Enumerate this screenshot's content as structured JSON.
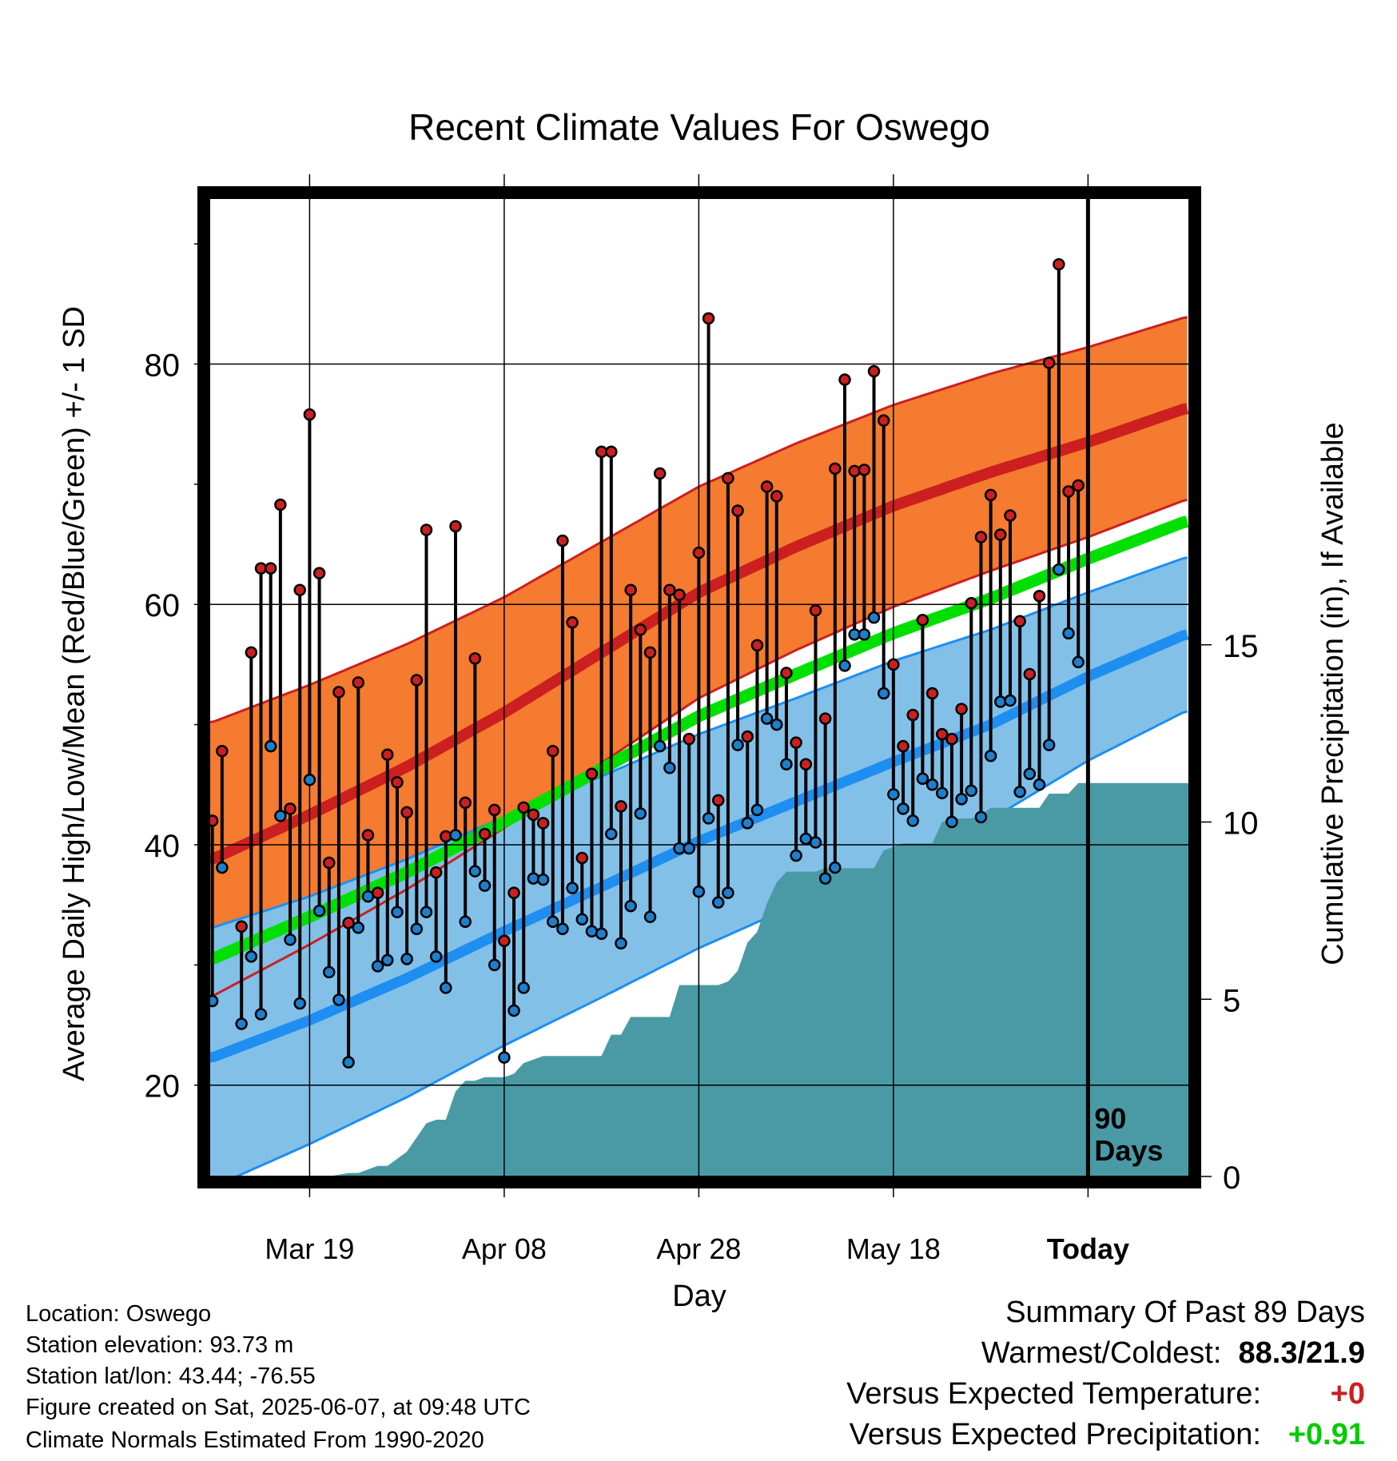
{
  "chart_data": {
    "type": "line",
    "title": "Recent Climate Values For Oswego",
    "xlabel": "Day",
    "ylabel": "Average Daily High/Low/Mean (Red/Blue/Green) +/- 1 SD",
    "y2label": "Cumulative Precipitation (in), If Available",
    "x_tick_labels": [
      "Mar 19",
      "Apr 08",
      "Apr 28",
      "May 18",
      "Today"
    ],
    "x_tick_days": [
      10,
      30,
      50,
      70,
      90
    ],
    "y_ticks": [
      20,
      40,
      60,
      80
    ],
    "y2_ticks": [
      0,
      5,
      10,
      15
    ],
    "xlim": [
      -0.3,
      100.4
    ],
    "ylim": [
      12.4,
      93.8
    ],
    "y2lim": [
      0,
      27.6
    ],
    "today_marker": {
      "day": 90,
      "label_line1": "90",
      "label_line2": "Days"
    },
    "normals": {
      "days": [
        0,
        10,
        20,
        30,
        40,
        50,
        60,
        70,
        80,
        90,
        100
      ],
      "high_mean": [
        38.8,
        42.5,
        46.5,
        51.0,
        56.0,
        61.0,
        64.8,
        68.2,
        71.0,
        73.5,
        76.3
      ],
      "high_sd": [
        11.4,
        10.8,
        10.2,
        9.6,
        9.2,
        8.8,
        8.6,
        8.4,
        8.2,
        7.9,
        7.6
      ],
      "low_mean": [
        22.3,
        25.4,
        28.9,
        32.8,
        36.5,
        40.3,
        43.6,
        46.9,
        50.0,
        54.0,
        57.5
      ],
      "low_sd": [
        10.8,
        10.3,
        9.9,
        9.5,
        9.2,
        8.9,
        8.6,
        8.4,
        7.9,
        7.0,
        6.4
      ],
      "avg_mean": [
        30.5,
        34.0,
        37.7,
        41.9,
        46.3,
        50.7,
        54.2,
        57.6,
        60.5,
        63.8,
        66.9
      ]
    },
    "series": [
      {
        "name": "High",
        "color": "#cc1f1f",
        "x": [
          0,
          1,
          3,
          4,
          5,
          6,
          7,
          8,
          9,
          10,
          11,
          12,
          13,
          14,
          15,
          16,
          17,
          18,
          19,
          20,
          21,
          22,
          23,
          24,
          25,
          26,
          27,
          28,
          29,
          30,
          31,
          32,
          33,
          34,
          35,
          36,
          37,
          38,
          39,
          40,
          41,
          42,
          43,
          44,
          45,
          46,
          47,
          48,
          49,
          50,
          51,
          52,
          53,
          54,
          55,
          56,
          57,
          58,
          59,
          60,
          61,
          62,
          63,
          64,
          65,
          66,
          67,
          68,
          69,
          70,
          71,
          72,
          73,
          74,
          75,
          76,
          77,
          78,
          79,
          80,
          81,
          82,
          83,
          84,
          85,
          86,
          87,
          88,
          89
        ],
        "values": [
          42.0,
          47.8,
          33.2,
          56.0,
          63.0,
          63.0,
          68.3,
          43.0,
          61.2,
          75.8,
          62.6,
          38.5,
          52.7,
          33.5,
          53.5,
          40.8,
          36.0,
          47.5,
          45.2,
          42.7,
          53.7,
          66.2,
          37.7,
          40.7,
          66.5,
          43.5,
          55.5,
          40.9,
          42.9,
          32.0,
          36.0,
          43.1,
          42.5,
          41.8,
          47.8,
          65.3,
          58.5,
          38.9,
          45.9,
          72.7,
          72.7,
          43.2,
          61.2,
          57.9,
          56.0,
          70.9,
          61.2,
          60.8,
          48.8,
          64.3,
          83.8,
          43.7,
          70.5,
          67.8,
          49.0,
          56.6,
          69.8,
          69.0,
          54.3,
          48.5,
          46.7,
          59.5,
          50.5,
          71.3,
          78.7,
          71.1,
          71.2,
          79.4,
          75.3,
          55.0,
          48.2,
          50.8,
          58.7,
          52.6,
          49.2,
          48.8,
          51.3,
          60.1,
          65.6,
          69.1,
          65.8,
          67.4,
          58.6,
          54.2,
          60.7,
          80.1,
          88.3,
          69.4,
          69.9
        ]
      },
      {
        "name": "Low",
        "color": "#1f7fcc",
        "x": [
          0,
          1,
          3,
          4,
          5,
          6,
          7,
          8,
          9,
          10,
          11,
          12,
          13,
          14,
          15,
          16,
          17,
          18,
          19,
          20,
          21,
          22,
          23,
          24,
          25,
          26,
          27,
          28,
          29,
          30,
          31,
          32,
          33,
          34,
          35,
          36,
          37,
          38,
          39,
          40,
          41,
          42,
          43,
          44,
          45,
          46,
          47,
          48,
          49,
          50,
          51,
          52,
          53,
          54,
          55,
          56,
          57,
          58,
          59,
          60,
          61,
          62,
          63,
          64,
          65,
          66,
          67,
          68,
          69,
          70,
          71,
          72,
          73,
          74,
          75,
          76,
          77,
          78,
          79,
          80,
          81,
          82,
          83,
          84,
          85,
          86,
          87,
          88,
          89
        ],
        "values": [
          27.0,
          38.1,
          25.1,
          30.7,
          25.9,
          48.2,
          42.4,
          32.1,
          26.8,
          45.4,
          34.5,
          29.4,
          27.1,
          21.9,
          33.1,
          35.7,
          29.9,
          30.4,
          34.4,
          30.5,
          33.0,
          34.4,
          30.7,
          28.1,
          40.8,
          33.6,
          37.8,
          36.6,
          30.0,
          22.3,
          26.2,
          28.1,
          37.2,
          37.1,
          33.6,
          33.0,
          36.4,
          33.8,
          32.8,
          32.6,
          40.9,
          31.8,
          34.9,
          42.6,
          34.0,
          48.2,
          46.4,
          39.7,
          39.7,
          36.1,
          42.2,
          35.2,
          36.0,
          48.3,
          41.8,
          42.9,
          50.5,
          50.0,
          46.7,
          39.1,
          40.5,
          40.2,
          37.2,
          38.1,
          54.9,
          57.5,
          57.5,
          58.9,
          52.6,
          44.2,
          43.0,
          42.0,
          45.5,
          45.0,
          44.3,
          41.9,
          43.8,
          44.5,
          42.3,
          47.4,
          51.9,
          52.0,
          44.4,
          45.9,
          45.0,
          48.3,
          62.9,
          57.6,
          55.2
        ]
      }
    ],
    "precip": {
      "days": [
        0,
        12,
        14,
        15,
        17,
        18,
        20,
        22,
        23,
        24,
        25,
        26,
        27,
        28,
        29,
        30,
        31,
        32,
        33,
        34,
        35,
        36,
        37,
        38,
        39,
        40,
        41,
        42,
        43,
        44,
        45,
        46,
        47,
        48,
        49,
        50,
        51,
        52,
        53,
        54,
        55,
        56,
        57,
        58,
        59,
        60,
        61,
        62,
        63,
        64,
        65,
        66,
        67,
        68,
        69,
        70,
        71,
        72,
        73,
        74,
        75,
        76,
        77,
        78,
        79,
        80,
        81,
        82,
        83,
        84,
        85,
        86,
        87,
        88,
        89,
        100.4
      ],
      "values": [
        0,
        0,
        0.1,
        0.1,
        0.3,
        0.3,
        0.7,
        1.5,
        1.6,
        1.6,
        2.4,
        2.7,
        2.7,
        2.8,
        2.8,
        2.8,
        2.9,
        3.2,
        3.3,
        3.4,
        3.4,
        3.4,
        3.4,
        3.4,
        3.4,
        3.4,
        4.0,
        4.0,
        4.5,
        4.5,
        4.5,
        4.5,
        4.5,
        5.4,
        5.4,
        5.4,
        5.4,
        5.4,
        5.5,
        5.8,
        6.6,
        6.9,
        7.7,
        8.3,
        8.6,
        8.6,
        8.6,
        8.6,
        8.7,
        8.7,
        8.7,
        8.7,
        8.7,
        8.7,
        9.2,
        9.3,
        9.4,
        9.4,
        9.4,
        9.4,
        10.0,
        10.1,
        10.1,
        10.1,
        10.2,
        10.4,
        10.4,
        10.4,
        10.4,
        10.4,
        10.4,
        10.8,
        10.8,
        10.8,
        11.1,
        11.1
      ]
    }
  },
  "footer_info": {
    "location": "Location: Oswego",
    "elevation": "Station elevation: 93.73 m",
    "latlon": "Station lat/lon: 43.44; -76.55",
    "created": "Figure created on Sat, 2025-06-07, at 09:48 UTC",
    "normals": "Climate Normals Estimated From 1990-2020"
  },
  "summary": {
    "title": "Summary Of Past 89 Days",
    "warm_cold_label": "Warmest/Coldest:",
    "warm_cold_value": "88.3/21.9",
    "temp_label": "Versus Expected Temperature:",
    "temp_value": "+0",
    "temp_color": "#cc1f1f",
    "precip_label": "Versus Expected Precipitation:",
    "precip_value": "+0.91",
    "precip_color": "#00cc00"
  },
  "colors": {
    "high_band": "#f47b2f",
    "high_mean_line": "#cc1f1f",
    "low_band": "#82c0e8",
    "low_mean_line": "#1e8ef0",
    "avg_band": "#00e000",
    "precip_fill": "#4a9aa5",
    "frame": "#000000"
  }
}
